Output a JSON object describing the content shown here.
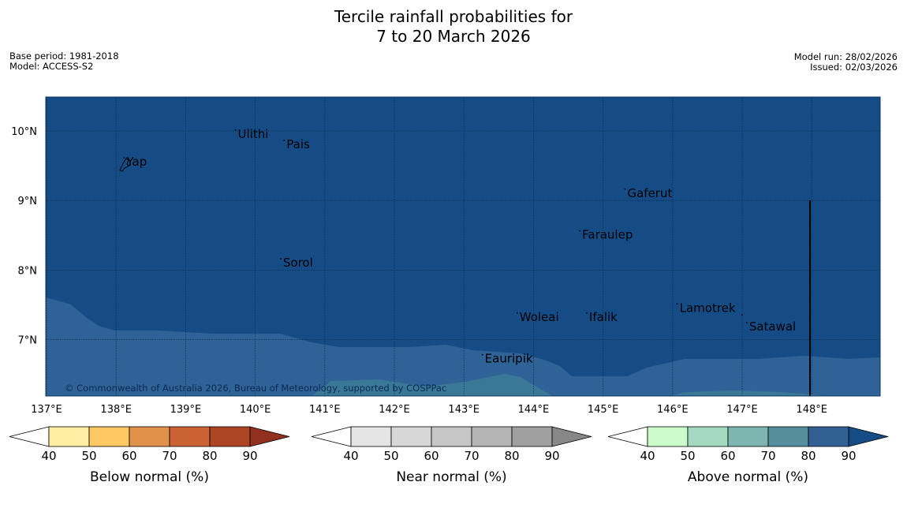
{
  "title": {
    "line1": "Tercile rainfall probabilities for",
    "line2": "7 to 20 March 2026"
  },
  "info_left": {
    "base_period": "Base period: 1981-2018",
    "model": "Model: ACCESS-S2"
  },
  "info_right": {
    "model_run": "Model run: 28/02/2026",
    "issued": "Issued: 02/03/2026"
  },
  "map": {
    "lon_range": [
      137,
      149
    ],
    "lat_range": [
      6.2,
      10.5
    ],
    "lon_ticks": [
      {
        "value": 137,
        "label": "137°E"
      },
      {
        "value": 138,
        "label": "138°E"
      },
      {
        "value": 139,
        "label": "139°E"
      },
      {
        "value": 140,
        "label": "140°E"
      },
      {
        "value": 141,
        "label": "141°E"
      },
      {
        "value": 142,
        "label": "142°E"
      },
      {
        "value": 143,
        "label": "143°E"
      },
      {
        "value": 144,
        "label": "144°E"
      },
      {
        "value": 145,
        "label": "145°E"
      },
      {
        "value": 146,
        "label": "146°E"
      },
      {
        "value": 147,
        "label": "147°E"
      },
      {
        "value": 148,
        "label": "148°E"
      }
    ],
    "lat_ticks": [
      {
        "value": 10,
        "label": "10°N"
      },
      {
        "value": 9,
        "label": "9°N"
      },
      {
        "value": 8,
        "label": "8°N"
      },
      {
        "value": 7,
        "label": "7°N"
      }
    ],
    "colors": {
      "above_80_90": "#154c86",
      "above_70_80": "#2f6296",
      "above_60_70": "#3a7898",
      "grid": "#0a2340",
      "ocean_line": "#000000"
    },
    "places": [
      {
        "name": "Ulithi",
        "lon": 139.75,
        "lat": 9.9
      },
      {
        "name": "Pais",
        "lon": 140.45,
        "lat": 9.75
      },
      {
        "name": "Yap",
        "lon": 138.15,
        "lat": 9.5
      },
      {
        "name": "Gaferut",
        "lon": 145.35,
        "lat": 9.05
      },
      {
        "name": "Faraulep",
        "lon": 144.7,
        "lat": 8.45
      },
      {
        "name": "Sorol",
        "lon": 140.4,
        "lat": 8.05
      },
      {
        "name": "Lamotrek",
        "lon": 146.1,
        "lat": 7.4
      },
      {
        "name": "Woleai",
        "lon": 143.8,
        "lat": 7.27
      },
      {
        "name": "Ifalik",
        "lon": 144.8,
        "lat": 7.27
      },
      {
        "name": "Satawal",
        "lon": 147.1,
        "lat": 7.13
      },
      {
        "name": "Eauripik",
        "lon": 143.3,
        "lat": 6.67
      }
    ],
    "copyright": "© Commonwealth of Australia 2026, Bureau of Meteorology, supported by COSPPac"
  },
  "colorbars": [
    {
      "id": "below",
      "label": "Below normal (%)",
      "colors": [
        "#ffffff",
        "#feeda2",
        "#fec962",
        "#e0914a",
        "#cb6235",
        "#ac4523",
        "#92301f"
      ],
      "ticks": [
        "40",
        "50",
        "60",
        "70",
        "80",
        "90"
      ]
    },
    {
      "id": "near",
      "label": "Near normal (%)",
      "colors": [
        "#ffffff",
        "#e5e5e5",
        "#d7d7d7",
        "#c6c6c6",
        "#b4b4b4",
        "#a0a0a0",
        "#878787"
      ],
      "ticks": [
        "40",
        "50",
        "60",
        "70",
        "80",
        "90"
      ]
    },
    {
      "id": "above",
      "label": "Above normal (%)",
      "colors": [
        "#ffffff",
        "#ccfccb",
        "#a2d9bf",
        "#7db6b0",
        "#578e9d",
        "#326093",
        "#154c86"
      ],
      "ticks": [
        "40",
        "50",
        "60",
        "70",
        "80",
        "90"
      ]
    }
  ]
}
